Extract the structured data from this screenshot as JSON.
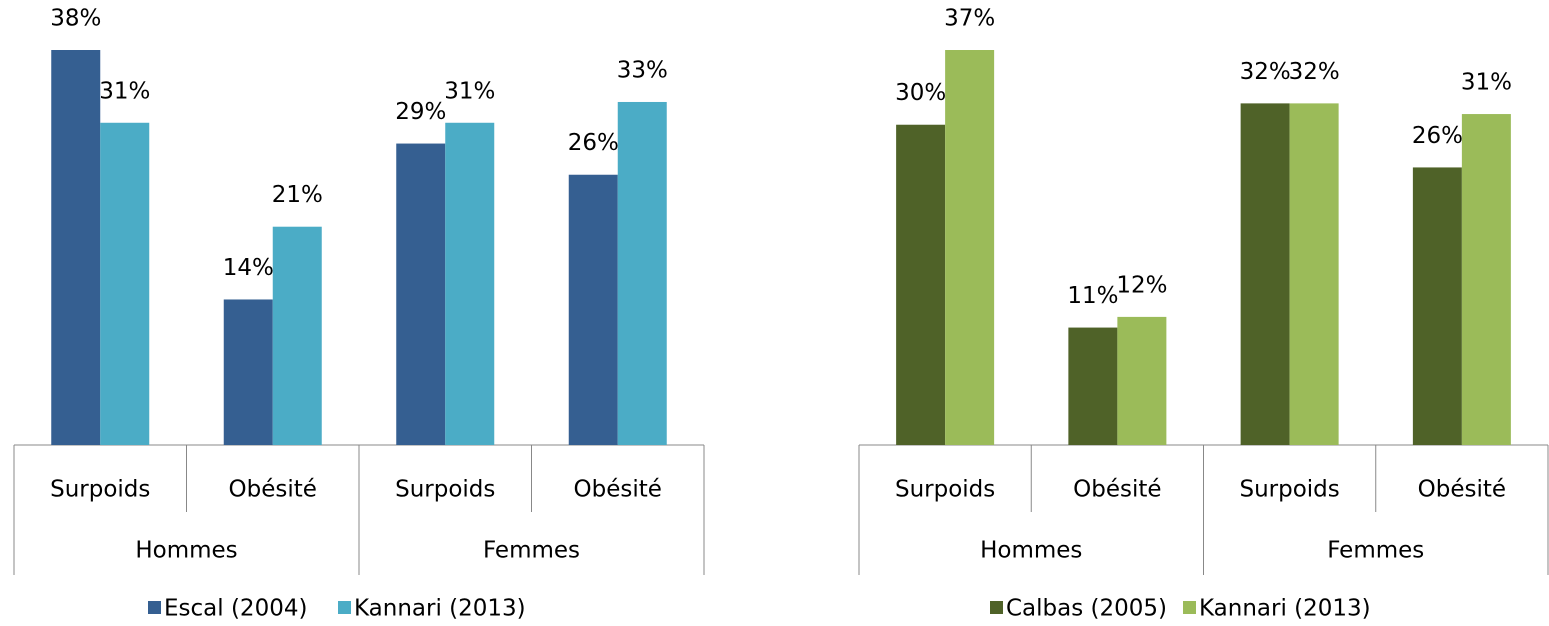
{
  "chart_data": [
    {
      "type": "bar",
      "categories": [
        "Surpoids",
        "Obésité",
        "Surpoids",
        "Obésité"
      ],
      "groups": [
        "Hommes",
        "Femmes"
      ],
      "series": [
        {
          "name": "Escal (2004)",
          "color": "#355f91",
          "values": [
            38,
            14,
            29,
            26
          ],
          "value_labels": [
            "38%",
            "14%",
            "29%",
            "26%"
          ]
        },
        {
          "name": "Kannari (2013)",
          "color": "#4bacc6",
          "values": [
            31,
            21,
            31,
            33
          ],
          "value_labels": [
            "31%",
            "21%",
            "31%",
            "33%"
          ]
        }
      ]
    },
    {
      "type": "bar",
      "categories": [
        "Surpoids",
        "Obésité",
        "Surpoids",
        "Obésité"
      ],
      "groups": [
        "Hommes",
        "Femmes"
      ],
      "series": [
        {
          "name": "Calbas (2005)",
          "color": "#4f6228",
          "values": [
            30,
            11,
            32,
            26
          ],
          "value_labels": [
            "30%",
            "11%",
            "32%",
            "26%"
          ]
        },
        {
          "name": "Kannari (2013)",
          "color": "#9bbb59",
          "values": [
            37,
            12,
            32,
            31
          ],
          "value_labels": [
            "37%",
            "12%",
            "32%",
            "31%"
          ]
        }
      ]
    }
  ]
}
